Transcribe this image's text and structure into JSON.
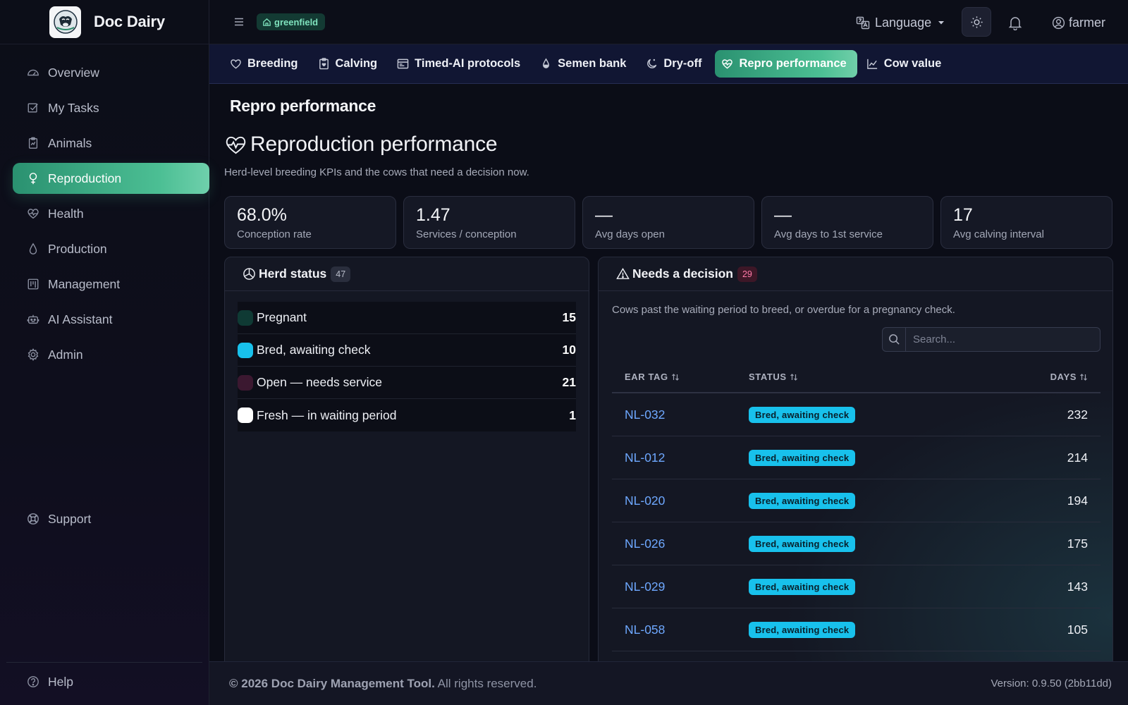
{
  "app": {
    "name": "Doc Dairy"
  },
  "sidebar": {
    "items": [
      {
        "label": "Overview",
        "icon": "gauge-icon"
      },
      {
        "label": "My Tasks",
        "icon": "checkbox-icon"
      },
      {
        "label": "Animals",
        "icon": "clipboard-icon"
      },
      {
        "label": "Reproduction",
        "icon": "venus-icon",
        "active": true
      },
      {
        "label": "Health",
        "icon": "heart-pulse-icon"
      },
      {
        "label": "Production",
        "icon": "droplet-icon"
      },
      {
        "label": "Management",
        "icon": "kanban-icon"
      },
      {
        "label": "AI Assistant",
        "icon": "robot-icon"
      },
      {
        "label": "Admin",
        "icon": "gear-icon"
      }
    ],
    "support": "Support",
    "help": "Help"
  },
  "topbar": {
    "farm": "greenfield",
    "language": "Language",
    "user": "farmer"
  },
  "tabs": [
    {
      "label": "Breeding",
      "icon": "heart-icon"
    },
    {
      "label": "Calving",
      "icon": "clipboard-heart-icon"
    },
    {
      "label": "Timed-AI protocols",
      "icon": "calendar-icon"
    },
    {
      "label": "Semen bank",
      "icon": "droplet-icon"
    },
    {
      "label": "Dry-off",
      "icon": "moon-icon"
    },
    {
      "label": "Repro performance",
      "icon": "heart-pulse-icon",
      "active": true
    },
    {
      "label": "Cow value",
      "icon": "chart-line-icon"
    }
  ],
  "page": {
    "title": "Repro performance",
    "heading": "Reproduction performance",
    "subtitle": "Herd-level breeding KPIs and the cows that need a decision now."
  },
  "kpis": [
    {
      "value": "68.0%",
      "label": "Conception rate"
    },
    {
      "value": "1.47",
      "label": "Services / conception"
    },
    {
      "value": "—",
      "label": "Avg days open"
    },
    {
      "value": "—",
      "label": "Avg days to 1st service"
    },
    {
      "value": "17",
      "label": "Avg calving interval"
    }
  ],
  "herd_status": {
    "title": "Herd status",
    "count": "47",
    "rows": [
      {
        "name": "Pregnant",
        "count": "15",
        "color": "#0f3a34"
      },
      {
        "name": "Bred, awaiting check",
        "count": "10",
        "color": "#18c1ec"
      },
      {
        "name": "Open — needs service",
        "count": "21",
        "color": "#3b1830"
      },
      {
        "name": "Fresh — in waiting period",
        "count": "1",
        "color": "#ffffff"
      }
    ]
  },
  "needs_decision": {
    "title": "Needs a decision",
    "count": "29",
    "description": "Cows past the waiting period to breed, or overdue for a pregnancy check.",
    "search_placeholder": "Search...",
    "columns": [
      "EAR TAG",
      "STATUS",
      "DAYS"
    ],
    "rows": [
      {
        "tag": "NL-032",
        "status": "Bred, awaiting check",
        "days": "232"
      },
      {
        "tag": "NL-012",
        "status": "Bred, awaiting check",
        "days": "214"
      },
      {
        "tag": "NL-020",
        "status": "Bred, awaiting check",
        "days": "194"
      },
      {
        "tag": "NL-026",
        "status": "Bred, awaiting check",
        "days": "175"
      },
      {
        "tag": "NL-029",
        "status": "Bred, awaiting check",
        "days": "143"
      },
      {
        "tag": "NL-058",
        "status": "Bred, awaiting check",
        "days": "105"
      }
    ]
  },
  "footer": {
    "copyright_bold": "© 2026 Doc Dairy Management Tool.",
    "copyright_rest": "All rights reserved.",
    "version": "Version: 0.9.50 (2bb11dd)"
  }
}
